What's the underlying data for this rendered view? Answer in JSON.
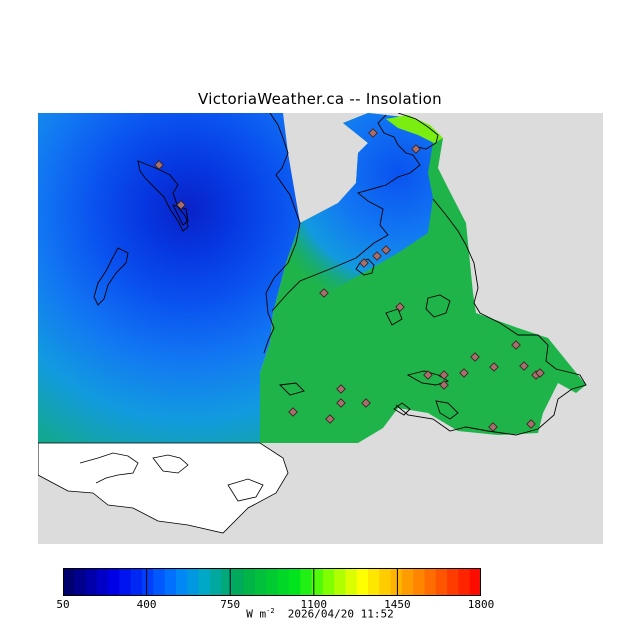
{
  "title": "VictoriaWeather.ca -- Insolation",
  "colors": {
    "no_data": "#dcdcdc",
    "water_min": "#0a22c8",
    "land_field": "#1fb44a",
    "land_high": "#7aee10",
    "station_marker": "#a4706e",
    "coastline": "#000000"
  },
  "legend": {
    "min": 50,
    "max": 1800,
    "ticks": [
      "50",
      "400",
      "750",
      "1100",
      "1450",
      "1800"
    ],
    "units_prefix": "W m",
    "units_exponent": "-2",
    "timestamp": "2026/04/20 11:52"
  }
}
